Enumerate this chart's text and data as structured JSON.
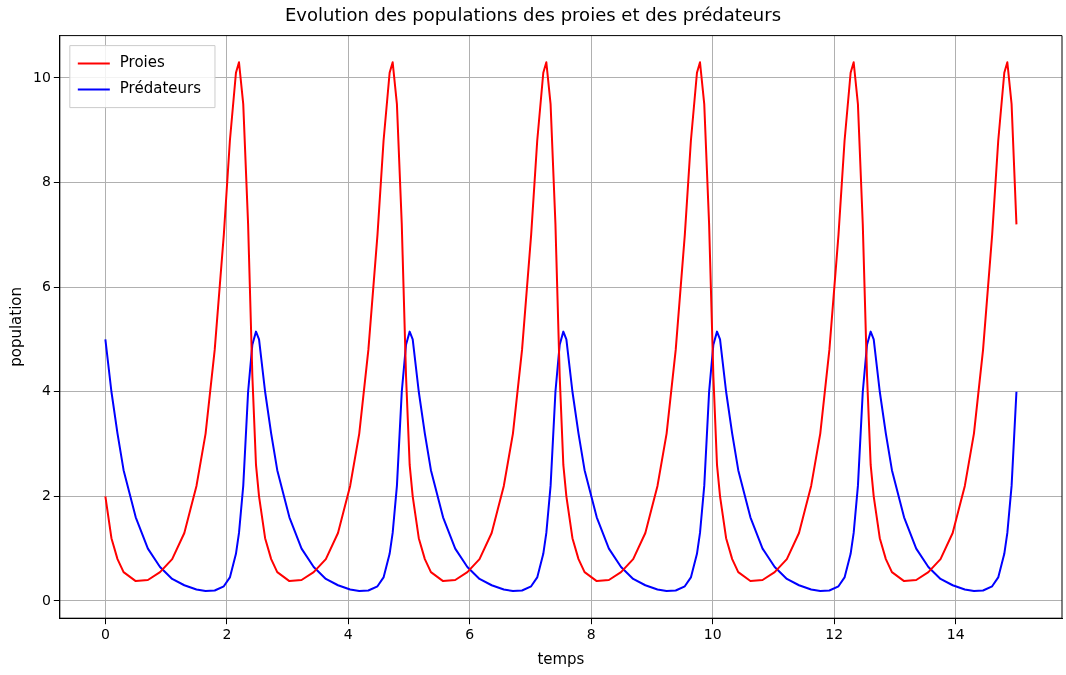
{
  "chart_data": {
    "type": "line",
    "title": "Evolution des populations des proies et des prédateurs",
    "xlabel": "temps",
    "ylabel": "population",
    "x": [
      0,
      0.1,
      0.2,
      0.3,
      0.5,
      0.7,
      0.9,
      1.1,
      1.3,
      1.5,
      1.65,
      1.8,
      1.95,
      2.05,
      2.15,
      2.2,
      2.27,
      2.35,
      2.42,
      2.48,
      2.53,
      2.63,
      2.73,
      2.83,
      3.03,
      3.23,
      3.43,
      3.63,
      3.83,
      4.03,
      4.18,
      4.33,
      4.48,
      4.58,
      4.68,
      4.73,
      4.8,
      4.88,
      4.95,
      5.01,
      5.06,
      5.16,
      5.26,
      5.36,
      5.56,
      5.76,
      5.96,
      6.16,
      6.36,
      6.56,
      6.71,
      6.86,
      7.01,
      7.11,
      7.21,
      7.26,
      7.33,
      7.41,
      7.48,
      7.54,
      7.59,
      7.69,
      7.79,
      7.89,
      8.09,
      8.29,
      8.49,
      8.69,
      8.89,
      9.09,
      9.24,
      9.39,
      9.54,
      9.64,
      9.74,
      9.79,
      9.86,
      9.94,
      10.01,
      10.07,
      10.12,
      10.22,
      10.32,
      10.42,
      10.62,
      10.82,
      11.02,
      11.22,
      11.42,
      11.62,
      11.77,
      11.92,
      12.07,
      12.17,
      12.27,
      12.32,
      12.39,
      12.47,
      12.54,
      12.6,
      12.65,
      12.75,
      12.85,
      12.95,
      13.15,
      13.35,
      13.55,
      13.75,
      13.95,
      14.15,
      14.3,
      14.45,
      14.6,
      14.7,
      14.8,
      14.85,
      14.92,
      15.0
    ],
    "series": [
      {
        "name": "Proies",
        "color": "#ff0000",
        "values": [
          2.0,
          1.2,
          0.8,
          0.55,
          0.38,
          0.4,
          0.55,
          0.8,
          1.3,
          2.2,
          3.2,
          4.8,
          7.0,
          8.8,
          10.1,
          10.3,
          9.5,
          7.2,
          4.3,
          2.6,
          2.0,
          1.2,
          0.8,
          0.55,
          0.38,
          0.4,
          0.55,
          0.8,
          1.3,
          2.2,
          3.2,
          4.8,
          7.0,
          8.8,
          10.1,
          10.3,
          9.5,
          7.2,
          4.3,
          2.6,
          2.0,
          1.2,
          0.8,
          0.55,
          0.38,
          0.4,
          0.55,
          0.8,
          1.3,
          2.2,
          3.2,
          4.8,
          7.0,
          8.8,
          10.1,
          10.3,
          9.5,
          7.2,
          4.3,
          2.6,
          2.0,
          1.2,
          0.8,
          0.55,
          0.38,
          0.4,
          0.55,
          0.8,
          1.3,
          2.2,
          3.2,
          4.8,
          7.0,
          8.8,
          10.1,
          10.3,
          9.5,
          7.2,
          4.3,
          2.6,
          2.0,
          1.2,
          0.8,
          0.55,
          0.38,
          0.4,
          0.55,
          0.8,
          1.3,
          2.2,
          3.2,
          4.8,
          7.0,
          8.8,
          10.1,
          10.3,
          9.5,
          7.2,
          4.3,
          2.6,
          2.0,
          1.2,
          0.8,
          0.55,
          0.38,
          0.4,
          0.55,
          0.8,
          1.3,
          2.2,
          3.2,
          4.8,
          7.0,
          8.8,
          10.1,
          10.3,
          9.5,
          7.2
        ]
      },
      {
        "name": "Prédateurs",
        "color": "#0000ff",
        "values": [
          5.0,
          4.0,
          3.2,
          2.5,
          1.6,
          1.0,
          0.65,
          0.42,
          0.3,
          0.22,
          0.19,
          0.2,
          0.28,
          0.45,
          0.9,
          1.3,
          2.2,
          4.0,
          4.9,
          5.15,
          5.0,
          4.0,
          3.2,
          2.5,
          1.6,
          1.0,
          0.65,
          0.42,
          0.3,
          0.22,
          0.19,
          0.2,
          0.28,
          0.45,
          0.9,
          1.3,
          2.2,
          4.0,
          4.9,
          5.15,
          5.0,
          4.0,
          3.2,
          2.5,
          1.6,
          1.0,
          0.65,
          0.42,
          0.3,
          0.22,
          0.19,
          0.2,
          0.28,
          0.45,
          0.9,
          1.3,
          2.2,
          4.0,
          4.9,
          5.15,
          5.0,
          4.0,
          3.2,
          2.5,
          1.6,
          1.0,
          0.65,
          0.42,
          0.3,
          0.22,
          0.19,
          0.2,
          0.28,
          0.45,
          0.9,
          1.3,
          2.2,
          4.0,
          4.9,
          5.15,
          5.0,
          4.0,
          3.2,
          2.5,
          1.6,
          1.0,
          0.65,
          0.42,
          0.3,
          0.22,
          0.19,
          0.2,
          0.28,
          0.45,
          0.9,
          1.3,
          2.2,
          4.0,
          4.9,
          5.15,
          5.0,
          4.0,
          3.2,
          2.5,
          1.6,
          1.0,
          0.65,
          0.42,
          0.3,
          0.22,
          0.19,
          0.2,
          0.28,
          0.45,
          0.9,
          1.3,
          2.2,
          4.0
        ]
      }
    ],
    "xlim": [
      -0.75,
      15.75
    ],
    "ylim": [
      -0.33,
      10.81
    ],
    "xticks": [
      0,
      2,
      4,
      6,
      8,
      10,
      12,
      14
    ],
    "yticks": [
      0,
      2,
      4,
      6,
      8,
      10
    ],
    "grid": true,
    "legend": "top left",
    "marker": "none",
    "line_style": "solid"
  }
}
